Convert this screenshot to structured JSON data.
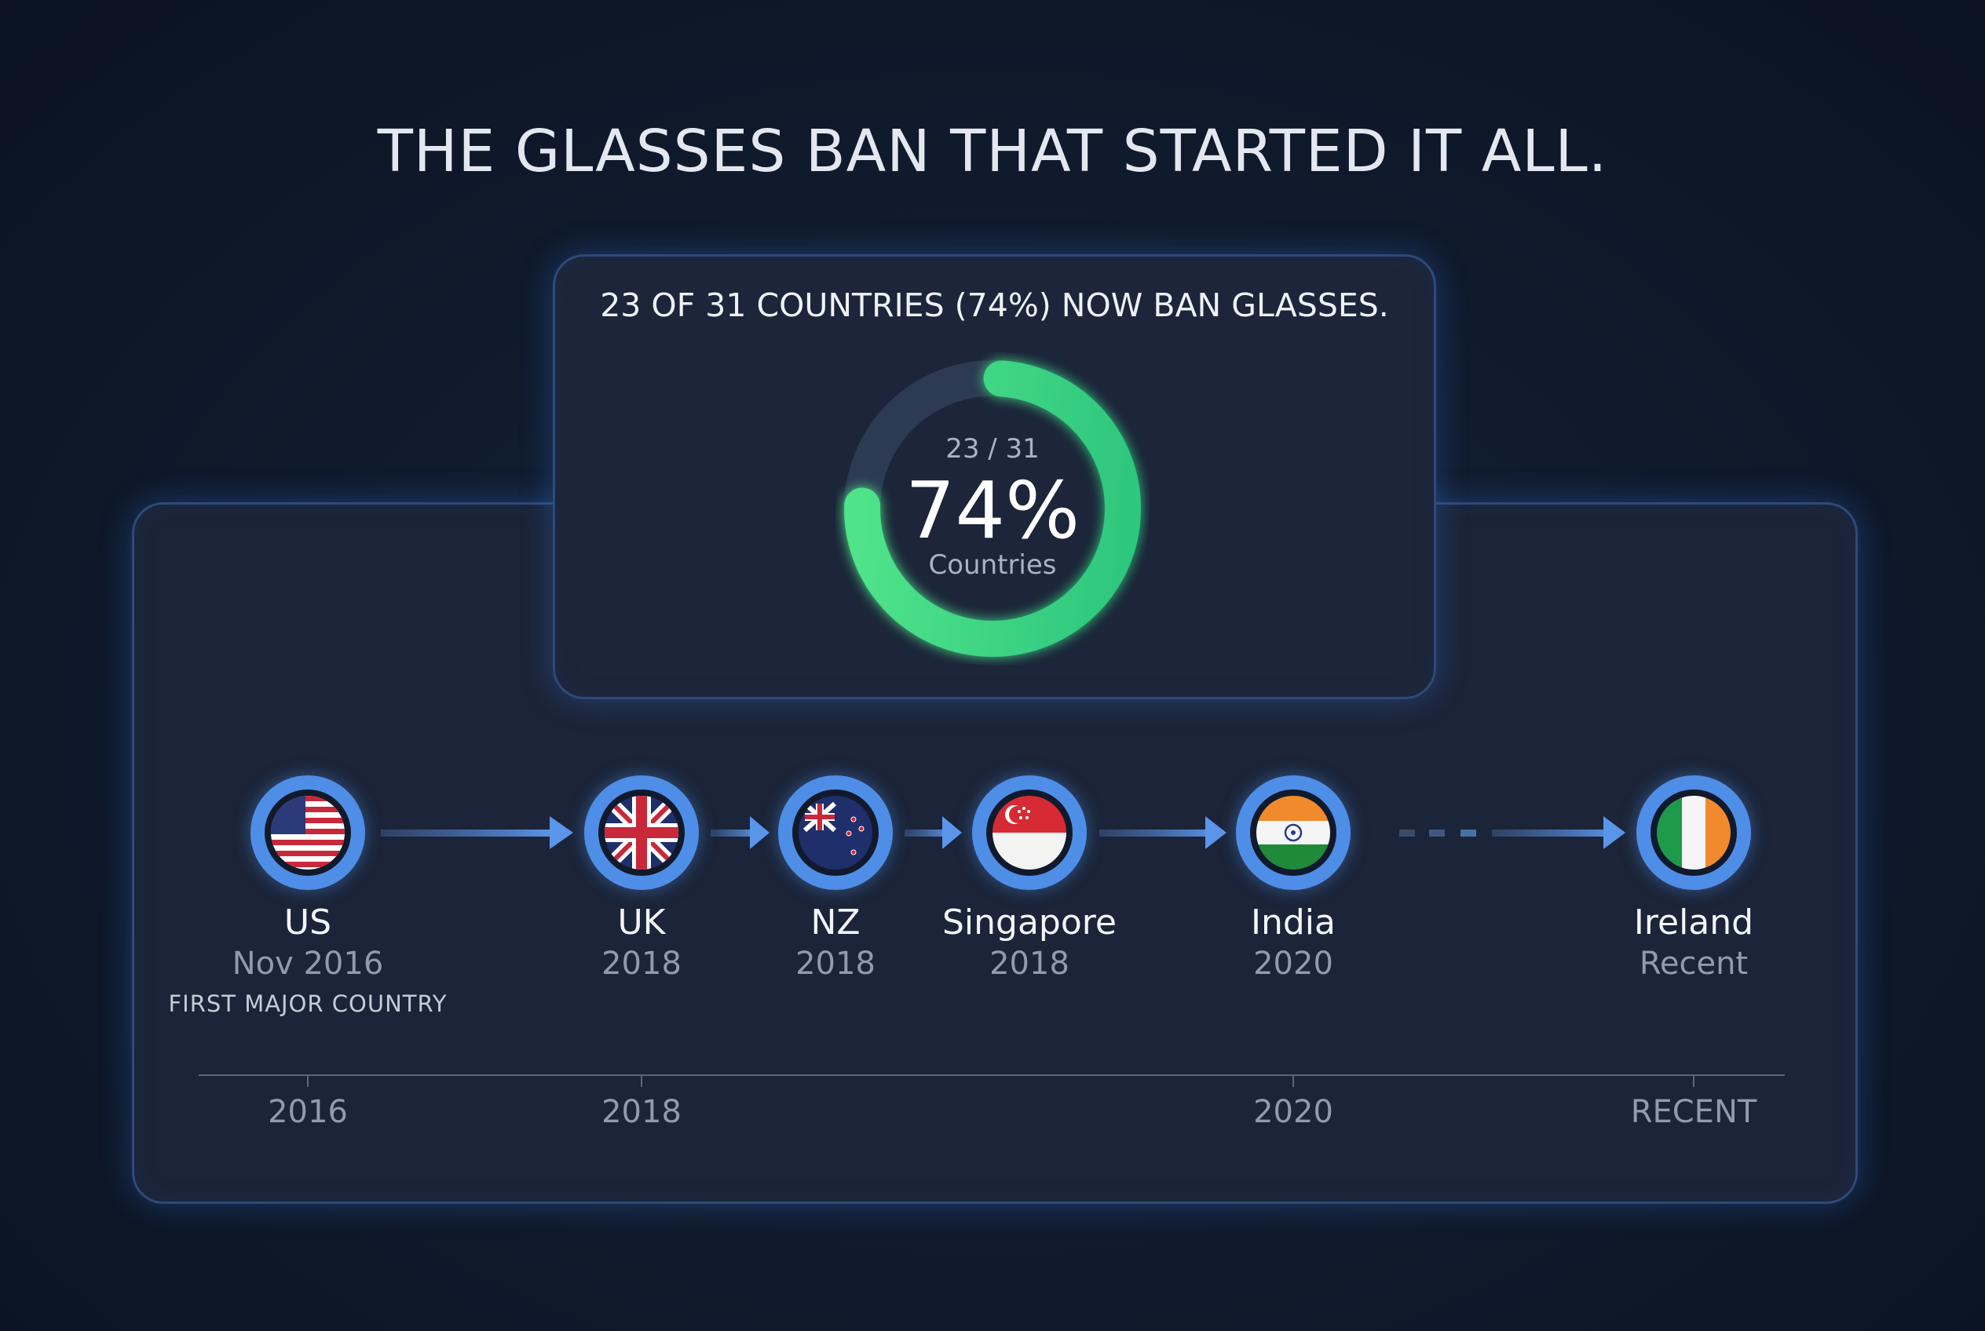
{
  "title": "THE  GLASSES BAN THAT STARTED IT ALL.",
  "stat_card": {
    "header": "23 OF 31 COUNTRIES (74%) NOW BAN GLASSES.",
    "fraction": "23 / 31",
    "percent_label": "74%",
    "unit": "Countries",
    "value": 23,
    "total": 31,
    "progress_color": "#3ddc84",
    "track_color": "#2c3a52"
  },
  "timeline": {
    "nodes": [
      {
        "name": "US",
        "date": "Nov 2016",
        "note": "FIRST MAJOR COUNTRY",
        "flag": "us-flag-icon"
      },
      {
        "name": "UK",
        "date": "2018",
        "flag": "uk-flag-icon"
      },
      {
        "name": "NZ",
        "date": "2018",
        "flag": "nz-flag-icon"
      },
      {
        "name": "Singapore",
        "date": "2018",
        "flag": "singapore-flag-icon"
      },
      {
        "name": "India",
        "date": "2020",
        "flag": "india-flag-icon"
      },
      {
        "name": "Ireland",
        "date": "Recent",
        "flag": "ireland-flag-icon"
      }
    ],
    "axis_labels": [
      "2016",
      "2018",
      "2020",
      "RECENT"
    ],
    "accent_color": "#4f8ee6"
  }
}
